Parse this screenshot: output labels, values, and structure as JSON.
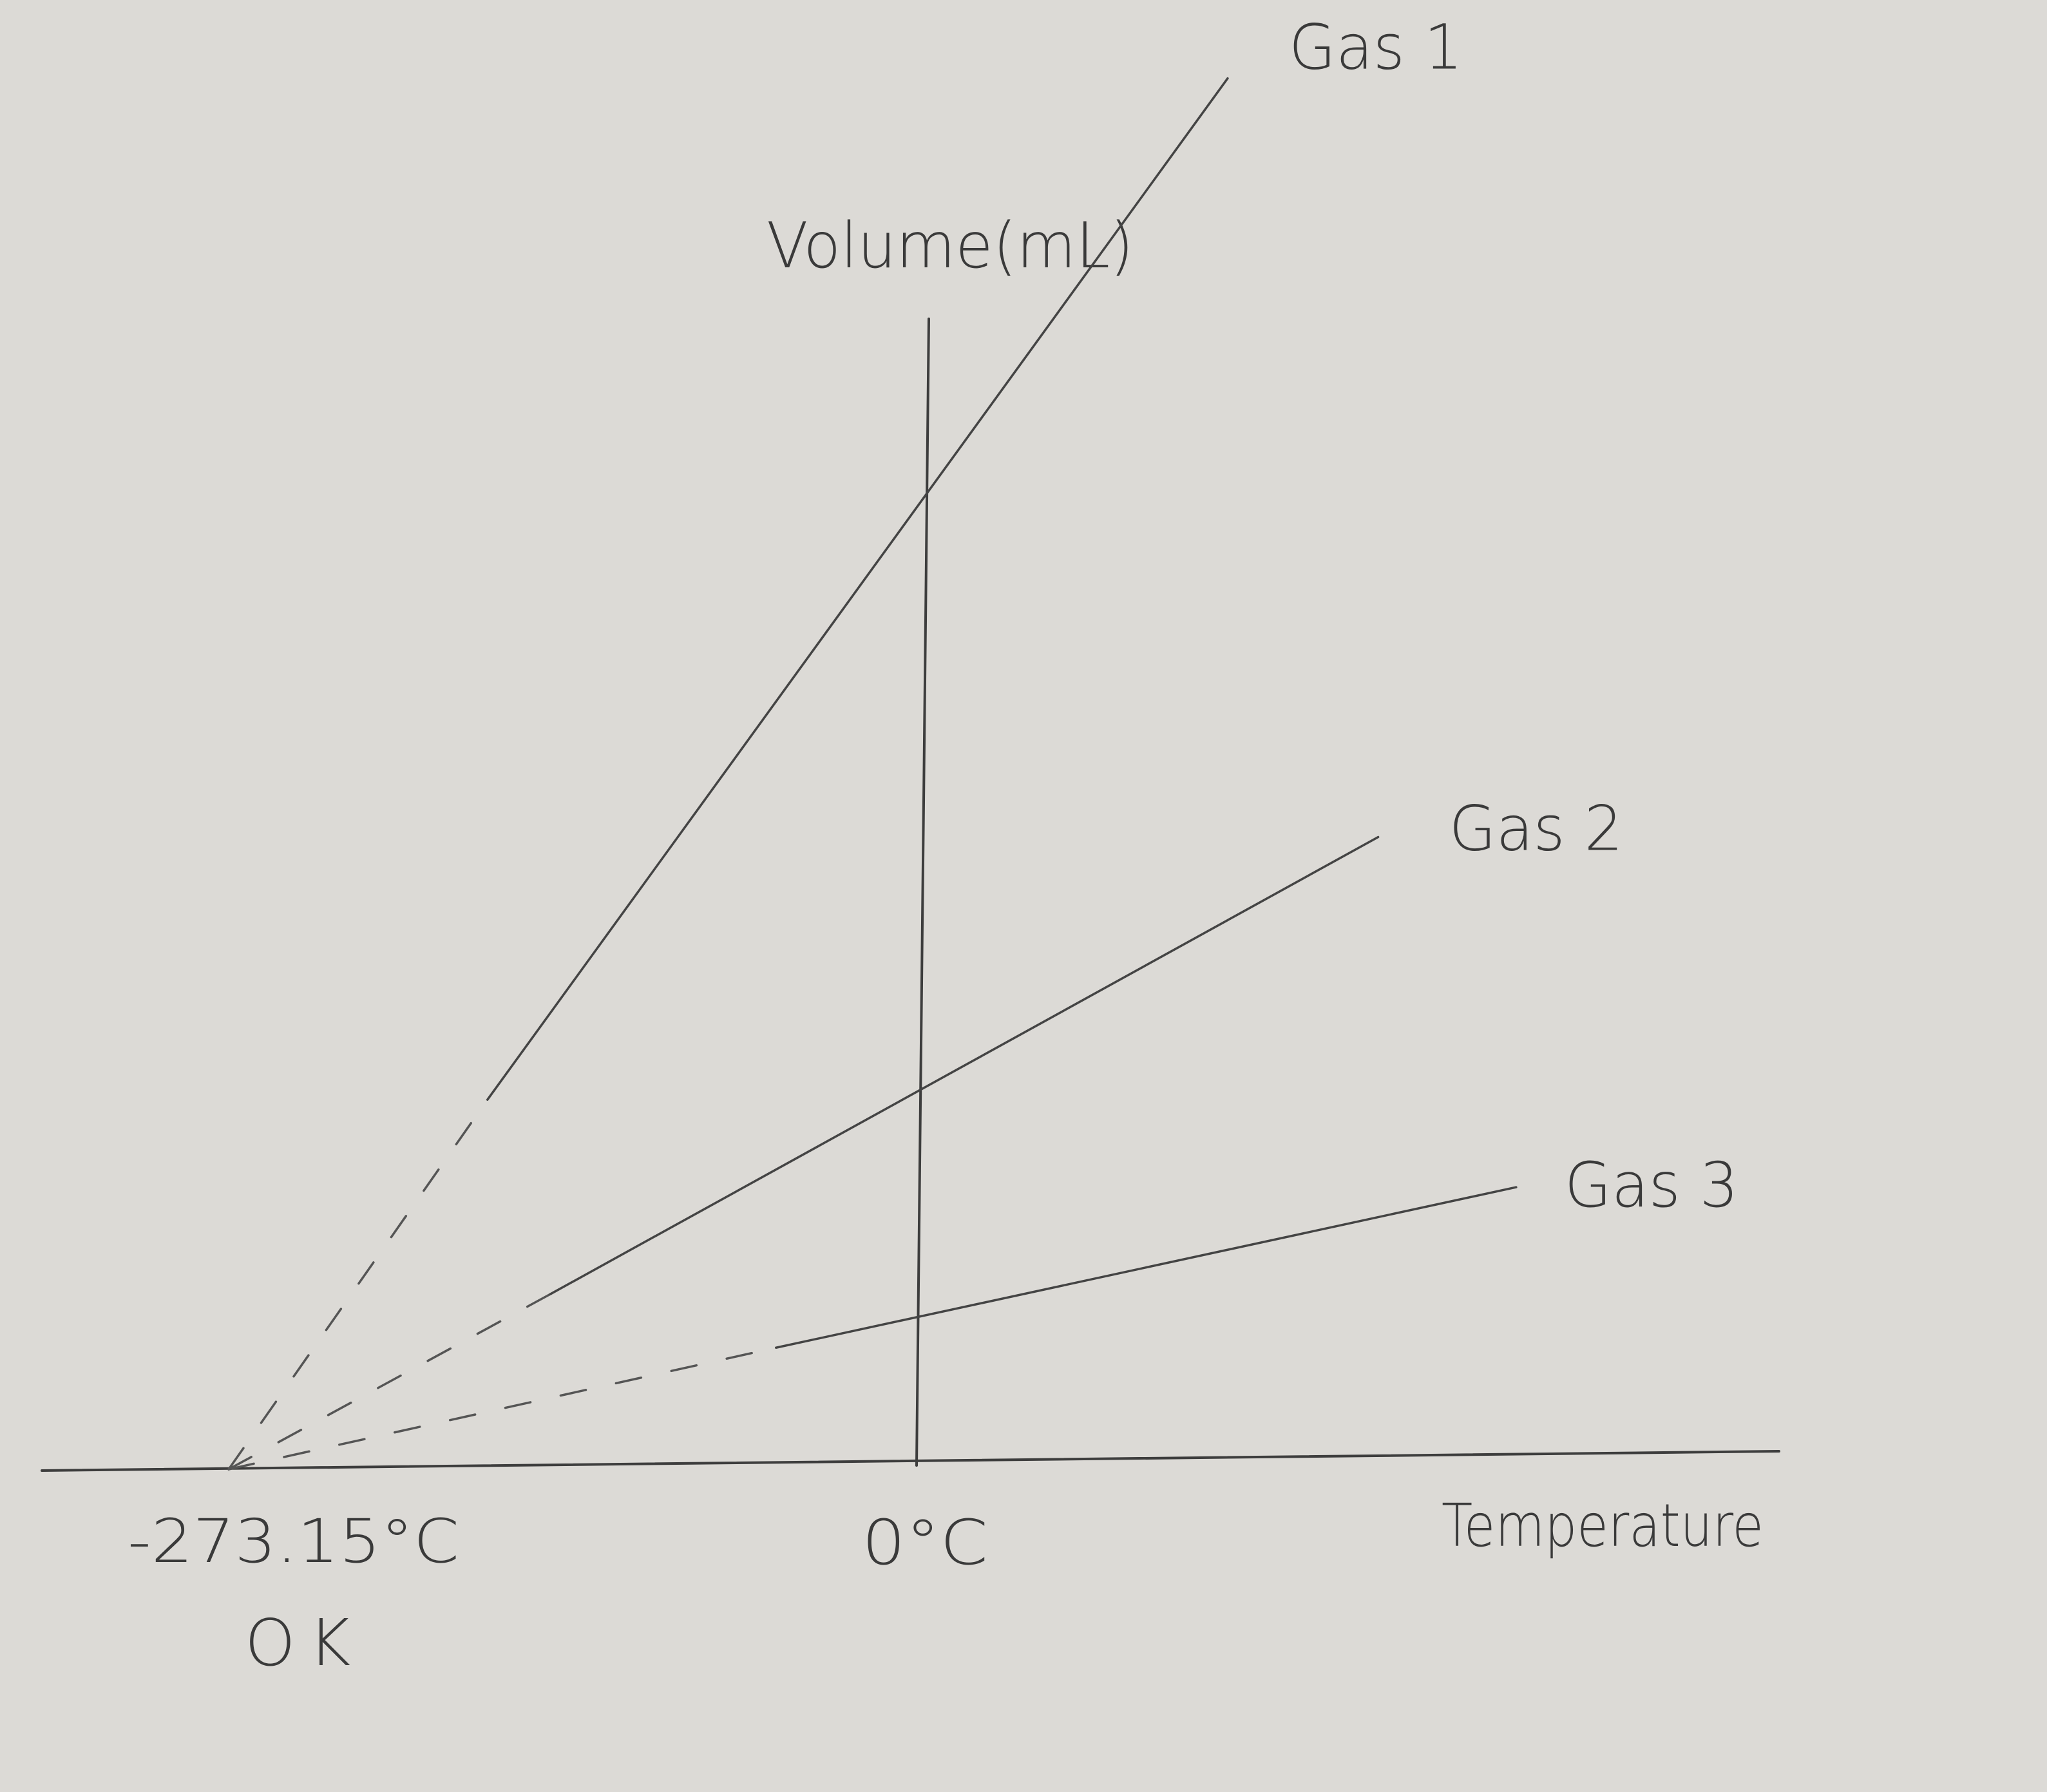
{
  "chart_data": {
    "type": "line",
    "ylabel": "Volume(mL)",
    "xlabel": "Temperature",
    "ticks": [
      {
        "x": -273.15,
        "label": "-273.15°C",
        "sublabel": "OK"
      },
      {
        "x": 0,
        "label": "0°C"
      }
    ],
    "xlim": [
      -323,
      250
    ],
    "ylim": [
      0,
      100
    ],
    "series": [
      {
        "name": "Gas 1",
        "x": [
          -273.15,
          -170,
          125
        ],
        "y": [
          0,
          38,
          143
        ],
        "extrapolated_until": -170
      },
      {
        "name": "Gas 2",
        "x": [
          -273.15,
          -145,
          185
        ],
        "y": [
          0,
          18,
          65
        ],
        "extrapolated_until": -145
      },
      {
        "name": "Gas 3",
        "x": [
          -273.15,
          -55,
          240
        ],
        "y": [
          0,
          12.5,
          29
        ],
        "extrapolated_until": -55
      }
    ],
    "grid": false,
    "legend": "labels at line ends"
  }
}
